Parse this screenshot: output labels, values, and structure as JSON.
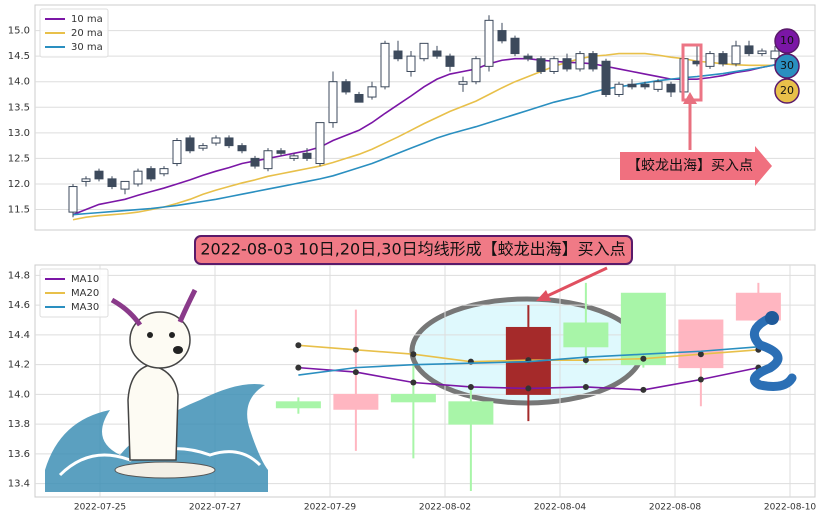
{
  "chart_data": [
    {
      "type": "candlestick",
      "open": [
        11.45,
        12.05,
        12.25,
        12.1,
        11.9,
        12.0,
        12.3,
        12.2,
        12.4,
        12.9,
        12.7,
        12.8,
        12.9,
        12.75,
        12.5,
        12.3,
        12.65,
        12.5,
        12.6,
        12.4,
        13.2,
        14.0,
        13.75,
        13.7,
        13.9,
        14.6,
        14.2,
        14.45,
        14.6,
        14.5,
        13.95,
        14.0,
        14.3,
        15.0,
        14.85,
        14.5,
        14.45,
        14.2,
        14.45,
        14.25,
        14.55,
        14.4,
        13.75,
        13.95,
        13.95,
        13.85,
        13.95,
        13.8,
        14.4,
        14.3,
        14.55,
        14.35,
        14.7,
        14.55,
        14.45
      ],
      "high": [
        12.0,
        12.15,
        12.3,
        12.15,
        12.05,
        12.3,
        12.35,
        12.35,
        12.9,
        12.95,
        12.8,
        12.95,
        12.95,
        12.8,
        12.55,
        12.7,
        12.7,
        12.6,
        12.7,
        13.2,
        14.2,
        14.05,
        13.8,
        14.0,
        14.8,
        14.8,
        14.6,
        14.75,
        14.7,
        14.55,
        14.1,
        14.5,
        15.3,
        15.15,
        14.9,
        14.55,
        14.5,
        14.5,
        14.55,
        14.6,
        14.6,
        14.45,
        14.0,
        14.05,
        14.0,
        14.05,
        14.0,
        14.5,
        14.7,
        14.6,
        14.6,
        14.8,
        14.8,
        14.65,
        14.7
      ],
      "low": [
        11.35,
        11.95,
        12.05,
        11.9,
        11.8,
        11.95,
        12.05,
        12.15,
        12.35,
        12.6,
        12.65,
        12.75,
        12.7,
        12.6,
        12.3,
        12.25,
        12.55,
        12.45,
        12.45,
        12.35,
        13.1,
        13.75,
        13.6,
        13.65,
        13.85,
        14.4,
        14.1,
        14.4,
        14.45,
        14.2,
        13.8,
        13.95,
        14.2,
        14.75,
        14.5,
        14.4,
        14.15,
        14.15,
        14.2,
        14.2,
        14.2,
        13.7,
        13.7,
        13.85,
        13.85,
        13.8,
        13.7,
        13.7,
        14.3,
        14.25,
        14.3,
        14.3,
        14.5,
        14.5,
        14.3
      ],
      "close": [
        11.95,
        12.1,
        12.1,
        11.95,
        12.05,
        12.25,
        12.1,
        12.3,
        12.85,
        12.65,
        12.75,
        12.9,
        12.75,
        12.65,
        12.35,
        12.65,
        12.6,
        12.55,
        12.5,
        13.2,
        14.0,
        13.8,
        13.6,
        13.9,
        14.75,
        14.45,
        14.5,
        14.75,
        14.5,
        14.3,
        14.0,
        14.45,
        15.2,
        14.8,
        14.55,
        14.45,
        14.2,
        14.45,
        14.25,
        14.55,
        14.25,
        13.75,
        13.95,
        13.9,
        13.9,
        14.0,
        13.8,
        14.45,
        14.35,
        14.55,
        14.35,
        14.7,
        14.55,
        14.6,
        14.6
      ],
      "up_color": "#ffffff",
      "down_color": "#3d4a5c",
      "series": [
        {
          "name": "10 ma",
          "color": "#7b16a6",
          "values": [
            11.4,
            11.5,
            11.6,
            11.65,
            11.7,
            11.78,
            11.85,
            11.92,
            12.0,
            12.08,
            12.17,
            12.25,
            12.32,
            12.4,
            12.45,
            12.5,
            12.55,
            12.6,
            12.65,
            12.72,
            12.85,
            12.95,
            13.05,
            13.2,
            13.38,
            13.55,
            13.72,
            13.9,
            14.05,
            14.15,
            14.2,
            14.25,
            14.35,
            14.42,
            14.45,
            14.45,
            14.42,
            14.4,
            14.38,
            14.37,
            14.35,
            14.3,
            14.25,
            14.2,
            14.15,
            14.1,
            14.05,
            14.05,
            14.05,
            14.08,
            14.12,
            14.18,
            14.22,
            14.28,
            14.33
          ]
        },
        {
          "name": "20 ma",
          "color": "#e8c04a",
          "values": [
            11.3,
            11.35,
            11.38,
            11.4,
            11.42,
            11.45,
            11.5,
            11.55,
            11.62,
            11.7,
            11.8,
            11.88,
            11.95,
            12.02,
            12.08,
            12.15,
            12.2,
            12.25,
            12.3,
            12.35,
            12.42,
            12.5,
            12.58,
            12.68,
            12.8,
            12.92,
            13.05,
            13.18,
            13.3,
            13.42,
            13.52,
            13.62,
            13.75,
            13.88,
            14.0,
            14.1,
            14.2,
            14.3,
            14.38,
            14.45,
            14.5,
            14.52,
            14.55,
            14.55,
            14.55,
            14.52,
            14.48,
            14.45,
            14.4,
            14.38,
            14.35,
            14.33,
            14.32,
            14.32,
            14.32
          ]
        },
        {
          "name": "30 ma",
          "color": "#2a8fc0",
          "values": [
            11.4,
            11.42,
            11.44,
            11.46,
            11.48,
            11.5,
            11.52,
            11.55,
            11.58,
            11.62,
            11.66,
            11.7,
            11.75,
            11.8,
            11.85,
            11.9,
            11.95,
            12.0,
            12.05,
            12.1,
            12.16,
            12.24,
            12.32,
            12.4,
            12.5,
            12.6,
            12.7,
            12.8,
            12.9,
            12.98,
            13.05,
            13.12,
            13.2,
            13.28,
            13.36,
            13.44,
            13.52,
            13.6,
            13.66,
            13.72,
            13.8,
            13.86,
            13.9,
            13.94,
            13.98,
            14.02,
            14.05,
            14.08,
            14.1,
            14.13,
            14.16,
            14.2,
            14.24,
            14.28,
            14.33
          ]
        }
      ],
      "ylim": [
        11.1,
        15.5
      ],
      "yticks": [
        11.5,
        {
          "value": 12,
          "label": "12.0"
        },
        12.5,
        {
          "value": 13,
          "label": "13.0"
        },
        13.5,
        {
          "value": 14,
          "label": "14.0"
        },
        14.5,
        {
          "value": 15,
          "label": "15.0"
        }
      ],
      "grid": true,
      "legend": "upper left",
      "badges": [
        {
          "label": "10",
          "color": "#7b16a6"
        },
        {
          "label": "30",
          "color": "#2a8fc0"
        },
        {
          "label": "20",
          "color": "#e8c04a"
        }
      ],
      "annotation": "【蛟龙出海】买入点"
    },
    {
      "type": "candlestick",
      "title": "2022-08-03 10日,20日,30日均线形成【蛟龙出海】买入点",
      "categories": [
        "2022-07-25",
        null,
        "2022-07-27",
        null,
        "2022-07-29",
        null,
        "2022-08-02",
        null,
        "2022-08-04",
        null,
        "2022-08-08",
        null,
        "2022-08-10"
      ],
      "open": [
        null,
        null,
        null,
        13.95,
        13.9,
        14.0,
        13.95,
        14.0,
        14.48,
        14.68,
        14.18,
        14.5,
        null
      ],
      "high": [
        null,
        null,
        null,
        13.98,
        14.57,
        14.2,
        14.05,
        14.6,
        14.75,
        14.68,
        14.5,
        14.75,
        null
      ],
      "low": [
        null,
        null,
        null,
        13.87,
        13.62,
        13.57,
        13.35,
        13.82,
        14.2,
        14.18,
        13.92,
        14.5,
        null
      ],
      "close": [
        null,
        null,
        null,
        13.91,
        14.0,
        13.95,
        13.8,
        14.45,
        14.32,
        14.2,
        14.5,
        14.68,
        null
      ],
      "colors": [
        null,
        null,
        null,
        "#a8f5a8",
        "#ffb6c1",
        "#a8f5a8",
        "#a8f5a8",
        "#a52a2a",
        "#a8f5a8",
        "#a8f5a8",
        "#ffb6c1",
        "#ffb6c1",
        null
      ],
      "series": [
        {
          "name": "MA10",
          "color": "#7b16a6",
          "marker": true,
          "values": [
            null,
            null,
            null,
            14.18,
            14.15,
            14.08,
            14.05,
            14.04,
            14.05,
            14.03,
            14.1,
            14.18,
            null
          ]
        },
        {
          "name": "MA20",
          "color": "#e8c04a",
          "marker": true,
          "values": [
            null,
            null,
            null,
            14.33,
            14.3,
            14.27,
            14.22,
            14.23,
            14.23,
            14.24,
            14.27,
            14.3,
            null
          ]
        },
        {
          "name": "MA30",
          "color": "#2a8fc0",
          "values": [
            null,
            null,
            null,
            14.13,
            14.18,
            14.2,
            14.21,
            14.22,
            14.25,
            14.27,
            14.29,
            14.32,
            null
          ]
        }
      ],
      "ylim": [
        13.31,
        14.87
      ],
      "yticks": [
        13.4,
        13.6,
        13.8,
        {
          "value": 14,
          "label": "14.0"
        },
        14.2,
        14.4,
        14.6,
        14.8
      ],
      "grid": true,
      "legend": "upper left"
    }
  ]
}
